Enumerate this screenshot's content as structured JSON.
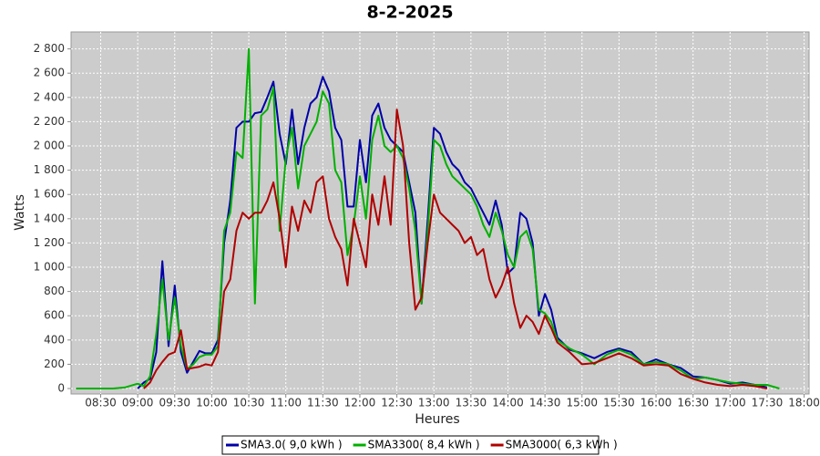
{
  "chart_data": {
    "type": "line",
    "title": "8-2-2025",
    "x_label": "Heures",
    "y_label": "Watts",
    "x": [
      "08:10",
      "08:20",
      "08:30",
      "08:40",
      "08:50",
      "09:00",
      "09:05",
      "09:10",
      "09:15",
      "09:20",
      "09:25",
      "09:30",
      "09:35",
      "09:40",
      "09:45",
      "09:50",
      "09:55",
      "10:00",
      "10:05",
      "10:10",
      "10:15",
      "10:20",
      "10:25",
      "10:30",
      "10:35",
      "10:40",
      "10:45",
      "10:50",
      "10:55",
      "11:00",
      "11:05",
      "11:10",
      "11:15",
      "11:20",
      "11:25",
      "11:30",
      "11:35",
      "11:40",
      "11:45",
      "11:50",
      "11:55",
      "12:00",
      "12:05",
      "12:10",
      "12:15",
      "12:20",
      "12:25",
      "12:30",
      "12:35",
      "12:40",
      "12:45",
      "12:50",
      "12:55",
      "13:00",
      "13:05",
      "13:10",
      "13:15",
      "13:20",
      "13:25",
      "13:30",
      "13:35",
      "13:40",
      "13:45",
      "13:50",
      "13:55",
      "14:00",
      "14:05",
      "14:10",
      "14:15",
      "14:20",
      "14:25",
      "14:30",
      "14:35",
      "14:40",
      "14:50",
      "15:00",
      "15:10",
      "15:20",
      "15:30",
      "15:40",
      "15:50",
      "16:00",
      "16:10",
      "16:20",
      "16:30",
      "16:40",
      "16:50",
      "17:00",
      "17:10",
      "17:20",
      "17:30",
      "17:40"
    ],
    "series": [
      {
        "name": "SMA3.0( 9,0 kWh )",
        "color": "#0000a8",
        "values": [
          null,
          null,
          null,
          null,
          null,
          0,
          50,
          80,
          300,
          1050,
          350,
          850,
          300,
          130,
          220,
          310,
          290,
          290,
          400,
          1200,
          1550,
          2150,
          2200,
          2200,
          2270,
          2280,
          2400,
          2530,
          2100,
          1850,
          2300,
          1850,
          2150,
          2350,
          2400,
          2570,
          2450,
          2150,
          2050,
          1500,
          1500,
          2050,
          1700,
          2250,
          2350,
          2150,
          2050,
          2000,
          1950,
          1700,
          1450,
          700,
          1400,
          2150,
          2100,
          1950,
          1850,
          1800,
          1700,
          1650,
          1550,
          1450,
          1350,
          1550,
          1350,
          950,
          1000,
          1450,
          1400,
          1200,
          600,
          780,
          650,
          420,
          320,
          290,
          250,
          300,
          330,
          300,
          200,
          240,
          200,
          170,
          100,
          90,
          70,
          40,
          50,
          30,
          10,
          null
        ]
      },
      {
        "name": "SMA3300( 8,4 kWh )",
        "color": "#00b000",
        "values": [
          0,
          0,
          0,
          0,
          10,
          40,
          20,
          100,
          450,
          900,
          400,
          750,
          350,
          160,
          200,
          260,
          280,
          280,
          350,
          1300,
          1450,
          1950,
          1900,
          2800,
          700,
          2250,
          2300,
          2480,
          1300,
          1900,
          2150,
          1650,
          2000,
          2100,
          2200,
          2450,
          2350,
          1800,
          1700,
          1100,
          1350,
          1750,
          1400,
          2050,
          2250,
          2000,
          1950,
          2000,
          1900,
          1650,
          1300,
          700,
          1300,
          2050,
          2000,
          1850,
          1750,
          1700,
          1650,
          1600,
          1500,
          1350,
          1250,
          1450,
          1300,
          1100,
          1000,
          1250,
          1300,
          1150,
          650,
          620,
          550,
          400,
          330,
          280,
          200,
          280,
          320,
          280,
          200,
          220,
          200,
          150,
          80,
          90,
          70,
          50,
          40,
          30,
          30,
          0
        ]
      },
      {
        "name": "SMA3000( 6,3 kWh )",
        "color": "#b00000",
        "values": [
          null,
          null,
          null,
          null,
          null,
          null,
          0,
          50,
          150,
          220,
          280,
          300,
          480,
          160,
          170,
          180,
          200,
          190,
          300,
          800,
          900,
          1300,
          1450,
          1400,
          1450,
          1450,
          1550,
          1700,
          1400,
          1000,
          1500,
          1300,
          1550,
          1450,
          1700,
          1750,
          1400,
          1250,
          1150,
          850,
          1400,
          1200,
          1000,
          1600,
          1350,
          1750,
          1350,
          2300,
          2000,
          1200,
          650,
          750,
          1200,
          1600,
          1450,
          1400,
          1350,
          1300,
          1200,
          1250,
          1100,
          1150,
          900,
          750,
          850,
          1000,
          700,
          500,
          600,
          550,
          450,
          600,
          500,
          380,
          300,
          200,
          210,
          250,
          290,
          250,
          190,
          200,
          190,
          120,
          80,
          50,
          30,
          20,
          30,
          20,
          0,
          null
        ]
      }
    ],
    "xlim": [
      "08:06",
      "18:04"
    ],
    "xticks": [
      "08:30",
      "09:00",
      "09:30",
      "10:00",
      "10:30",
      "11:00",
      "11:30",
      "12:00",
      "12:30",
      "13:00",
      "13:30",
      "14:00",
      "14:30",
      "15:00",
      "15:30",
      "16:00",
      "16:30",
      "17:00",
      "17:30",
      "18:00"
    ],
    "ylim": [
      -45,
      2940
    ],
    "yticks": [
      0,
      200,
      400,
      600,
      800,
      {
        "value": 1000,
        "label": "1 000"
      },
      {
        "value": 1200,
        "label": "1 200"
      },
      {
        "value": 1400,
        "label": "1 400"
      },
      {
        "value": 1600,
        "label": "1 600"
      },
      {
        "value": 1800,
        "label": "1 800"
      },
      {
        "value": 2000,
        "label": "2 000"
      },
      {
        "value": 2200,
        "label": "2 200"
      },
      {
        "value": 2400,
        "label": "2 400"
      },
      {
        "value": 2600,
        "label": "2 600"
      },
      {
        "value": 2800,
        "label": "2 800"
      }
    ],
    "grid": true
  }
}
